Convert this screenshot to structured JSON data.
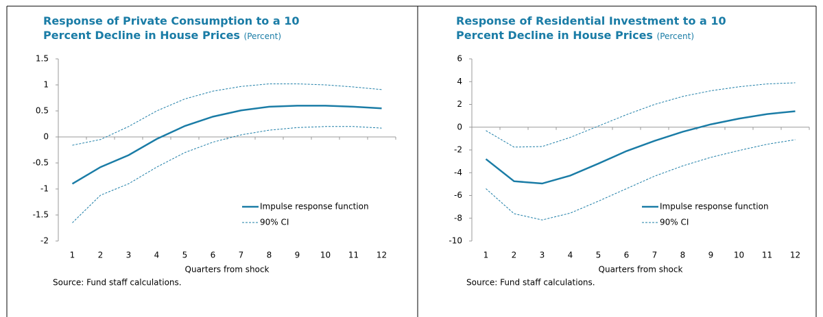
{
  "chart_data": [
    {
      "type": "line",
      "title": "Response of Private Consumption to a 10 Percent Decline in House Prices",
      "subtitle": "(Percent)",
      "x_label": "Quarters from shock",
      "source": "Source: Fund staff calculations.",
      "categories": [
        "1",
        "2",
        "3",
        "4",
        "5",
        "6",
        "7",
        "8",
        "9",
        "10",
        "11",
        "12"
      ],
      "ylim": [
        -2,
        1.5
      ],
      "yticks": [
        -2,
        -1.5,
        -1,
        -0.5,
        0,
        0.5,
        1,
        1.5
      ],
      "legend": "lower right",
      "series": [
        {
          "name": "Impulse response function",
          "color": "#1a7ca6",
          "style": "solid",
          "values": [
            -0.9,
            -0.58,
            -0.35,
            -0.04,
            0.21,
            0.39,
            0.51,
            0.58,
            0.6,
            0.6,
            0.58,
            0.55
          ]
        },
        {
          "name": "90% CI",
          "color": "#1a7ca6",
          "style": "dashed",
          "upper": [
            -0.16,
            -0.05,
            0.2,
            0.5,
            0.73,
            0.88,
            0.97,
            1.02,
            1.02,
            1.0,
            0.96,
            0.91
          ],
          "lower": [
            -1.65,
            -1.12,
            -0.9,
            -0.58,
            -0.3,
            -0.1,
            0.04,
            0.13,
            0.18,
            0.2,
            0.2,
            0.17
          ]
        }
      ]
    },
    {
      "type": "line",
      "title": "Response of Residential Investment to a 10 Percent Decline in House Prices",
      "subtitle": "(Percent)",
      "x_label": "Quarters from shock",
      "source": "Source: Fund staff calculations.",
      "categories": [
        "1",
        "2",
        "3",
        "4",
        "5",
        "6",
        "7",
        "8",
        "9",
        "10",
        "11",
        "12"
      ],
      "ylim": [
        -10,
        6
      ],
      "yticks": [
        -10,
        -8,
        -6,
        -4,
        -2,
        0,
        2,
        4,
        6
      ],
      "legend": "lower right",
      "series": [
        {
          "name": "Impulse response function",
          "color": "#1a7ca6",
          "style": "solid",
          "values": [
            -2.8,
            -4.75,
            -4.95,
            -4.25,
            -3.2,
            -2.1,
            -1.2,
            -0.4,
            0.25,
            0.75,
            1.15,
            1.4
          ]
        },
        {
          "name": "90% CI",
          "color": "#1a7ca6",
          "style": "dashed",
          "upper": [
            -0.3,
            -1.75,
            -1.7,
            -0.9,
            0.1,
            1.1,
            2.0,
            2.7,
            3.2,
            3.55,
            3.8,
            3.9
          ],
          "lower": [
            -5.4,
            -7.6,
            -8.15,
            -7.55,
            -6.5,
            -5.4,
            -4.3,
            -3.4,
            -2.65,
            -2.05,
            -1.5,
            -1.1
          ]
        }
      ]
    }
  ]
}
